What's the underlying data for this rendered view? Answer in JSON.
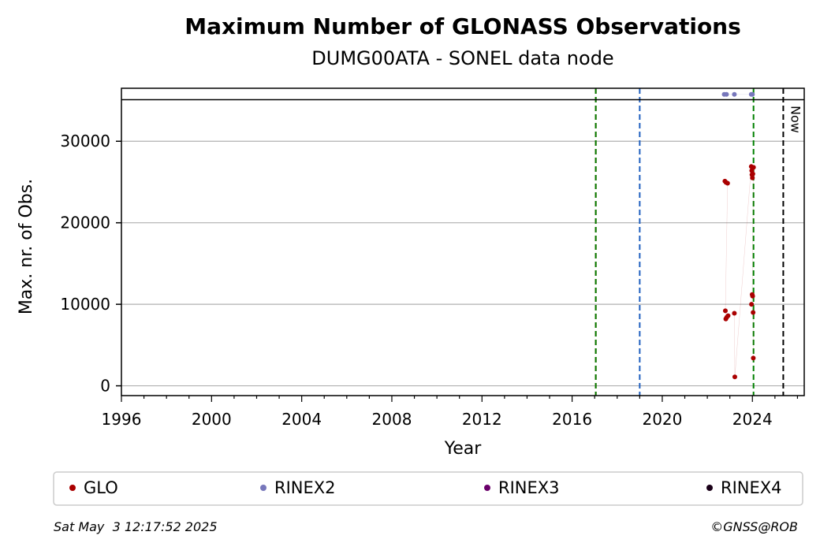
{
  "chart_data": {
    "type": "scatter",
    "title": "Maximum Number of GLONASS Observations",
    "subtitle": "DUMG00ATA - SONEL data node",
    "xlabel": "Year",
    "ylabel": "Max. nr. of Obs.",
    "xlim": [
      1996,
      2026.3
    ],
    "ylim": [
      -1200,
      36500
    ],
    "x_ticks": [
      1996,
      2000,
      2004,
      2008,
      2012,
      2016,
      2020,
      2024
    ],
    "y_ticks": [
      0,
      10000,
      20000,
      30000
    ],
    "grid": "horizontal",
    "legend_position": "bottom",
    "max_line_y": 35100,
    "vertical_lines": [
      {
        "x": 2017.05,
        "color": "#d40000",
        "style": "dashed"
      },
      {
        "x": 2017.05,
        "color": "#008000",
        "style": "dashed"
      },
      {
        "x": 2019.0,
        "color": "#1f5fbf",
        "style": "dashed"
      },
      {
        "x": 2024.05,
        "color": "#008000",
        "style": "dashed"
      },
      {
        "x": 2025.37,
        "color": "#000000",
        "style": "dashed",
        "label": "Now"
      }
    ],
    "series": [
      {
        "name": "GLO",
        "color": "#aa0000",
        "points": [
          [
            2022.78,
            25100
          ],
          [
            2022.83,
            24950
          ],
          [
            2022.9,
            24850
          ],
          [
            2022.8,
            9200
          ],
          [
            2022.82,
            8200
          ],
          [
            2022.86,
            8400
          ],
          [
            2022.92,
            8600
          ],
          [
            2023.2,
            8900
          ],
          [
            2023.22,
            1100
          ],
          [
            2023.95,
            26900
          ],
          [
            2023.97,
            26400
          ],
          [
            2023.98,
            25900
          ],
          [
            2024.0,
            25500
          ],
          [
            2024.02,
            26000
          ],
          [
            2024.05,
            26800
          ],
          [
            2023.99,
            11200
          ],
          [
            2024.01,
            11000
          ],
          [
            2023.96,
            10000
          ],
          [
            2024.03,
            9000
          ],
          [
            2024.04,
            3400
          ]
        ]
      },
      {
        "name": "RINEX2",
        "color": "#7777bb",
        "points": [
          [
            2022.75,
            35750
          ],
          [
            2022.85,
            35750
          ],
          [
            2023.2,
            35750
          ],
          [
            2023.95,
            35750
          ],
          [
            2024.0,
            35750
          ]
        ]
      },
      {
        "name": "RINEX3",
        "color": "#6a006a",
        "points": []
      },
      {
        "name": "RINEX4",
        "color": "#1a0018",
        "points": []
      }
    ]
  },
  "footer": {
    "timestamp": "Sat May  3 12:17:52 2025",
    "credit": "©GNSS@ROB"
  }
}
